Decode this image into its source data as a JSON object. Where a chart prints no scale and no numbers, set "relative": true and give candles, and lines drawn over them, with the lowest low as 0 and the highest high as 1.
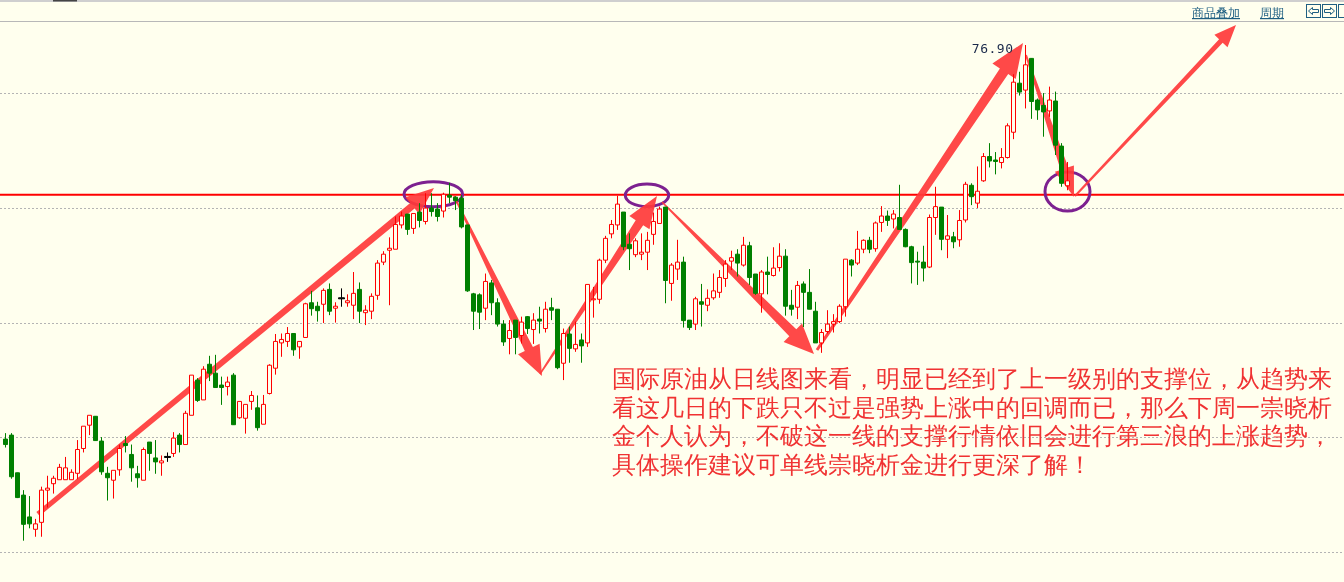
{
  "chart_data": {
    "type": "candlestick",
    "relative": true,
    "grid": "y",
    "categories": [
      null,
      null,
      null,
      null,
      null,
      null,
      null,
      null,
      null,
      null,
      null,
      null,
      null,
      null,
      null,
      null,
      null,
      null,
      null,
      null,
      null,
      null,
      null,
      null,
      null,
      null,
      null,
      null,
      null,
      null,
      null,
      null,
      null,
      null,
      null,
      null,
      null,
      null,
      null,
      null,
      null,
      null,
      null,
      null,
      null,
      null,
      null,
      null,
      null,
      null,
      null,
      null,
      null,
      null,
      null,
      null,
      null,
      null,
      null,
      null,
      null,
      null,
      null,
      null,
      null,
      null,
      null,
      null,
      null,
      null,
      null,
      null,
      null,
      null,
      null,
      null,
      null,
      null,
      null,
      null,
      null,
      null,
      null,
      null,
      null,
      null,
      null,
      null,
      null,
      null,
      null,
      null,
      null,
      null,
      null,
      null,
      null,
      null,
      null,
      null,
      null,
      null,
      null,
      null,
      null,
      null,
      null,
      null,
      null,
      null,
      null,
      null,
      null,
      null,
      null,
      null,
      null,
      null,
      null,
      null,
      null,
      null,
      null,
      null,
      null,
      null,
      null,
      null,
      null,
      null,
      null,
      null,
      null,
      null,
      null,
      null,
      null,
      null,
      null,
      null,
      null,
      null,
      null,
      null,
      null,
      null,
      null,
      null,
      null,
      null,
      null,
      null,
      null,
      null,
      null,
      null,
      null,
      null,
      null,
      null,
      null,
      null,
      null,
      null,
      null,
      null,
      null,
      null,
      null,
      null,
      null,
      null,
      null,
      null,
      null,
      null,
      null,
      null
    ],
    "ohlc": [
      [
        0.205,
        0.217,
        0.188,
        0.194
      ],
      [
        0.213,
        0.217,
        0.125,
        0.129
      ],
      [
        0.137,
        0.137,
        0.086,
        0.087
      ],
      [
        0.092,
        0.102,
        0,
        0.033
      ],
      [
        0.048,
        0.09,
        0.025,
        0.034
      ],
      [
        0.023,
        0.044,
        0.008,
        0.034
      ],
      [
        0.037,
        0.109,
        0.008,
        0.102
      ],
      [
        0.102,
        0.131,
        0.067,
        0.106
      ],
      [
        0.115,
        0.131,
        0.095,
        0.126
      ],
      [
        0.123,
        0.155,
        0.123,
        0.148
      ],
      [
        0.123,
        0.169,
        0.123,
        0.147
      ],
      [
        0.123,
        0.144,
        0.123,
        0.138
      ],
      [
        0.136,
        0.203,
        0.124,
        0.184
      ],
      [
        0.186,
        0.231,
        0.178,
        0.231
      ],
      [
        0.233,
        0.253,
        0.213,
        0.253
      ],
      [
        0.251,
        0.251,
        0.202,
        0.202
      ],
      [
        0.201,
        0.209,
        0.133,
        0.139
      ],
      [
        0.136,
        0.149,
        0.081,
        0.127
      ],
      [
        0.122,
        0.142,
        0.085,
        0.142
      ],
      [
        0.143,
        0.194,
        0.131,
        0.186
      ],
      [
        0.196,
        0.211,
        0.178,
        0.192
      ],
      [
        0.174,
        0.194,
        0.119,
        0.147
      ],
      [
        0.135,
        0.151,
        0.107,
        0.127
      ],
      [
        0.122,
        0.188,
        0.122,
        0.184
      ],
      [
        0.199,
        0.199,
        0.141,
        0.176
      ],
      [
        0.167,
        0.203,
        0.135,
        0.159
      ],
      [
        0.157,
        0.172,
        0.131,
        0.161
      ],
      [
        0.169,
        0.178,
        0.159,
        0.169
      ],
      [
        0.176,
        0.219,
        0.169,
        0.207
      ],
      [
        0.213,
        0.217,
        0.178,
        0.194
      ],
      [
        0.194,
        0.262,
        0.194,
        0.257
      ],
      [
        0.253,
        0.334,
        0.253,
        0.334
      ],
      [
        0.324,
        0.328,
        0.28,
        0.283
      ],
      [
        0.284,
        0.352,
        0.284,
        0.346
      ],
      [
        0.356,
        0.373,
        0.322,
        0.338
      ],
      [
        0.338,
        0.375,
        0.309,
        0.309
      ],
      [
        0.314,
        0.331,
        0.274,
        0.309
      ],
      [
        0.311,
        0.331,
        0.293,
        0.32
      ],
      [
        0.334,
        0.338,
        0.234,
        0.234
      ],
      [
        0.248,
        0.281,
        0.246,
        0.281
      ],
      [
        0.247,
        0.275,
        0.216,
        0.275
      ],
      [
        0.281,
        0.302,
        0.264,
        0.293
      ],
      [
        0.268,
        0.293,
        0.222,
        0.228
      ],
      [
        0.235,
        0.294,
        0.235,
        0.275
      ],
      [
        0.297,
        0.356,
        0.295,
        0.354
      ],
      [
        0.348,
        0.417,
        0.335,
        0.402
      ],
      [
        0.399,
        0.418,
        0.371,
        0.406
      ],
      [
        0.402,
        0.431,
        0.391,
        0.418
      ],
      [
        0.418,
        0.418,
        0.373,
        0.385
      ],
      [
        0.391,
        0.402,
        0.367,
        0.402
      ],
      [
        0.41,
        0.48,
        0.41,
        0.478
      ],
      [
        0.48,
        0.504,
        0.454,
        0.468
      ],
      [
        0.473,
        0.482,
        0.442,
        0.464
      ],
      [
        0.477,
        0.509,
        0.439,
        0.505
      ],
      [
        0.507,
        0.519,
        0.455,
        0.463
      ],
      [
        0.469,
        0.481,
        0.44,
        0.473
      ],
      [
        0.489,
        0.509,
        0.472,
        0.489
      ],
      [
        0.48,
        0.497,
        0.472,
        0.484
      ],
      [
        0.475,
        0.542,
        0.447,
        0.499
      ],
      [
        0.507,
        0.521,
        0.439,
        0.463
      ],
      [
        0.46,
        0.475,
        0.435,
        0.465
      ],
      [
        0.463,
        0.499,
        0.447,
        0.493
      ],
      [
        0.495,
        0.566,
        0.486,
        0.56
      ],
      [
        0.562,
        0.584,
        0.556,
        0.578
      ],
      [
        0.586,
        0.612,
        0.475,
        0.59
      ],
      [
        0.588,
        0.654,
        0.588,
        0.638
      ],
      [
        0.637,
        0.664,
        0.63,
        0.655
      ],
      [
        0.659,
        0.659,
        0.617,
        0.628
      ],
      [
        0.63,
        0.66,
        0.619,
        0.66
      ],
      [
        0.663,
        0.681,
        0.632,
        0.646
      ],
      [
        0.644,
        0.701,
        0.638,
        0.671
      ],
      [
        0.671,
        0.701,
        0.654,
        0.664
      ],
      [
        0.669,
        0.681,
        0.644,
        0.654
      ],
      [
        0.665,
        0.702,
        0.652,
        0.699
      ],
      [
        0.697,
        0.722,
        0.681,
        0.693
      ],
      [
        0.693,
        0.695,
        0.667,
        0.686
      ],
      [
        0.691,
        0.697,
        0.63,
        0.633
      ],
      [
        0.637,
        0.637,
        0.502,
        0.504
      ],
      [
        0.498,
        0.5,
        0.425,
        0.463
      ],
      [
        0.496,
        0.499,
        0.427,
        0.461
      ],
      [
        0.469,
        0.539,
        0.445,
        0.523
      ],
      [
        0.52,
        0.526,
        0.455,
        0.48
      ],
      [
        0.48,
        0.489,
        0.432,
        0.437
      ],
      [
        0.437,
        0.445,
        0.393,
        0.401
      ],
      [
        0.408,
        0.445,
        0.376,
        0.424
      ],
      [
        0.445,
        0.445,
        0.376,
        0.41
      ],
      [
        0.414,
        0.452,
        0.398,
        0.441
      ],
      [
        0.452,
        0.453,
        0.417,
        0.428
      ],
      [
        0.426,
        0.459,
        0.397,
        0.445
      ],
      [
        0.447,
        0.472,
        0.418,
        0.443
      ],
      [
        0.428,
        0.482,
        0.42,
        0.467
      ],
      [
        0.47,
        0.49,
        0.445,
        0.465
      ],
      [
        0.467,
        0.467,
        0.346,
        0.349
      ],
      [
        0.358,
        0.428,
        0.324,
        0.418
      ],
      [
        0.417,
        0.432,
        0.359,
        0.388
      ],
      [
        0.387,
        0.442,
        0.381,
        0.396
      ],
      [
        0.405,
        0.418,
        0.359,
        0.393
      ],
      [
        0.399,
        0.517,
        0.391,
        0.517
      ],
      [
        0.486,
        0.512,
        0.45,
        0.488
      ],
      [
        0.487,
        0.569,
        0.478,
        0.566
      ],
      [
        0.566,
        0.615,
        0.56,
        0.61
      ],
      [
        0.619,
        0.647,
        0.61,
        0.638
      ],
      [
        0.637,
        0.696,
        0.627,
        0.679
      ],
      [
        0.663,
        0.663,
        0.586,
        0.593
      ],
      [
        0.598,
        0.62,
        0.546,
        0.589
      ],
      [
        0.577,
        0.61,
        0.572,
        0.605
      ],
      [
        0.578,
        0.62,
        0.566,
        0.582
      ],
      [
        0.582,
        0.623,
        0.546,
        0.606
      ],
      [
        0.618,
        0.662,
        0.597,
        0.644
      ],
      [
        0.64,
        0.674,
        0.64,
        0.669
      ],
      [
        0.673,
        0.673,
        0.479,
        0.525
      ],
      [
        0.519,
        0.56,
        0.484,
        0.556
      ],
      [
        0.548,
        0.607,
        0.526,
        0.562
      ],
      [
        0.562,
        0.573,
        0.43,
        0.444
      ],
      [
        0.445,
        0.445,
        0.425,
        0.43
      ],
      [
        0.437,
        0.492,
        0.425,
        0.488
      ],
      [
        0.482,
        0.518,
        0.432,
        0.477
      ],
      [
        0.475,
        0.507,
        0.463,
        0.489
      ],
      [
        0.49,
        0.539,
        0.486,
        0.504
      ],
      [
        0.501,
        0.546,
        0.49,
        0.531
      ],
      [
        0.529,
        0.566,
        0.512,
        0.558
      ],
      [
        0.564,
        0.585,
        0.546,
        0.571
      ],
      [
        0.578,
        0.588,
        0.533,
        0.56
      ],
      [
        0.556,
        0.613,
        0.553,
        0.596
      ],
      [
        0.595,
        0.603,
        0.516,
        0.531
      ],
      [
        0.538,
        0.538,
        0.496,
        0.499
      ],
      [
        0.498,
        0.546,
        0.46,
        0.542
      ],
      [
        0.542,
        0.573,
        0.497,
        0.537
      ],
      [
        0.535,
        0.592,
        0.533,
        0.55
      ],
      [
        0.551,
        0.6,
        0.543,
        0.574
      ],
      [
        0.574,
        0.588,
        0.454,
        0.473
      ],
      [
        0.475,
        0.506,
        0.454,
        0.467
      ],
      [
        0.471,
        0.524,
        0.447,
        0.515
      ],
      [
        0.518,
        0.523,
        0.431,
        0.501
      ],
      [
        0.501,
        0.548,
        0.467,
        0.467
      ],
      [
        0.463,
        0.482,
        0.399,
        0.399
      ],
      [
        0.399,
        0.427,
        0.379,
        0.42
      ],
      [
        0.422,
        0.465,
        0.418,
        0.437
      ],
      [
        0.437,
        0.457,
        0.42,
        0.442
      ],
      [
        0.442,
        0.477,
        0.439,
        0.473
      ],
      [
        0.472,
        0.568,
        0.452,
        0.568
      ],
      [
        0.566,
        0.568,
        0.533,
        0.556
      ],
      [
        0.56,
        0.625,
        0.556,
        0.588
      ],
      [
        0.588,
        0.608,
        0.58,
        0.606
      ],
      [
        0.606,
        0.613,
        0.58,
        0.588
      ],
      [
        0.589,
        0.644,
        0.583,
        0.641
      ],
      [
        0.642,
        0.675,
        0.623,
        0.655
      ],
      [
        0.655,
        0.666,
        0.635,
        0.646
      ],
      [
        0.649,
        0.667,
        0.63,
        0.659
      ],
      [
        0.652,
        0.718,
        0.628,
        0.628
      ],
      [
        0.628,
        0.63,
        0.592,
        0.593
      ],
      [
        0.593,
        0.595,
        0.519,
        0.561
      ],
      [
        0.564,
        0.583,
        0.516,
        0.562
      ],
      [
        0.562,
        0.595,
        0.523,
        0.55
      ],
      [
        0.552,
        0.658,
        0.55,
        0.652
      ],
      [
        0.652,
        0.714,
        0.617,
        0.674
      ],
      [
        0.673,
        0.673,
        0.586,
        0.608
      ],
      [
        0.608,
        0.657,
        0.57,
        0.615
      ],
      [
        0.613,
        0.623,
        0.59,
        0.603
      ],
      [
        0.607,
        0.667,
        0.593,
        0.646
      ],
      [
        0.647,
        0.724,
        0.642,
        0.719
      ],
      [
        0.717,
        0.721,
        0.677,
        0.694
      ],
      [
        0.681,
        0.755,
        0.671,
        0.705
      ],
      [
        0.726,
        0.782,
        0.724,
        0.775
      ],
      [
        0.775,
        0.802,
        0.753,
        0.766
      ],
      [
        0.768,
        0.784,
        0.739,
        0.765
      ],
      [
        0.763,
        0.792,
        0.751,
        0.773
      ],
      [
        0.773,
        0.842,
        0.771,
        0.837
      ],
      [
        0.824,
        0.941,
        0.81,
        0.925
      ],
      [
        0.923,
        0.946,
        0.898,
        0.905
      ],
      [
        0.909,
        1,
        0.872,
        0.96
      ],
      [
        0.973,
        0.973,
        0.851,
        0.886
      ],
      [
        0.889,
        0.892,
        0.849,
        0.869
      ],
      [
        0.878,
        0.903,
        0.815,
        0.865
      ],
      [
        0.867,
        0.916,
        0.855,
        0.889
      ],
      [
        0.887,
        0.906,
        0.778,
        0.798
      ],
      [
        0.796,
        0.802,
        0.714,
        0.721
      ],
      [
        0.716,
        0.764,
        0.707,
        0.726
      ]
    ],
    "ref_lines": [
      {
        "axis": "y",
        "value": 0.698,
        "color": "#ff0000"
      }
    ],
    "annotations": [
      "76.90",
      "国际原油从日线图来看，明显已经到了上一级别的支撑位，从趋势来看这几日的下跌只不过是强势上涨中的回调而已，那么下周一崇晓析金个人认为，不破这一线的支撑行情依旧会进行第三浪的上涨趋势，具体操作建议可单线崇晓析金进行更深了解！",
      "商品叠加",
      "周期"
    ]
  }
}
